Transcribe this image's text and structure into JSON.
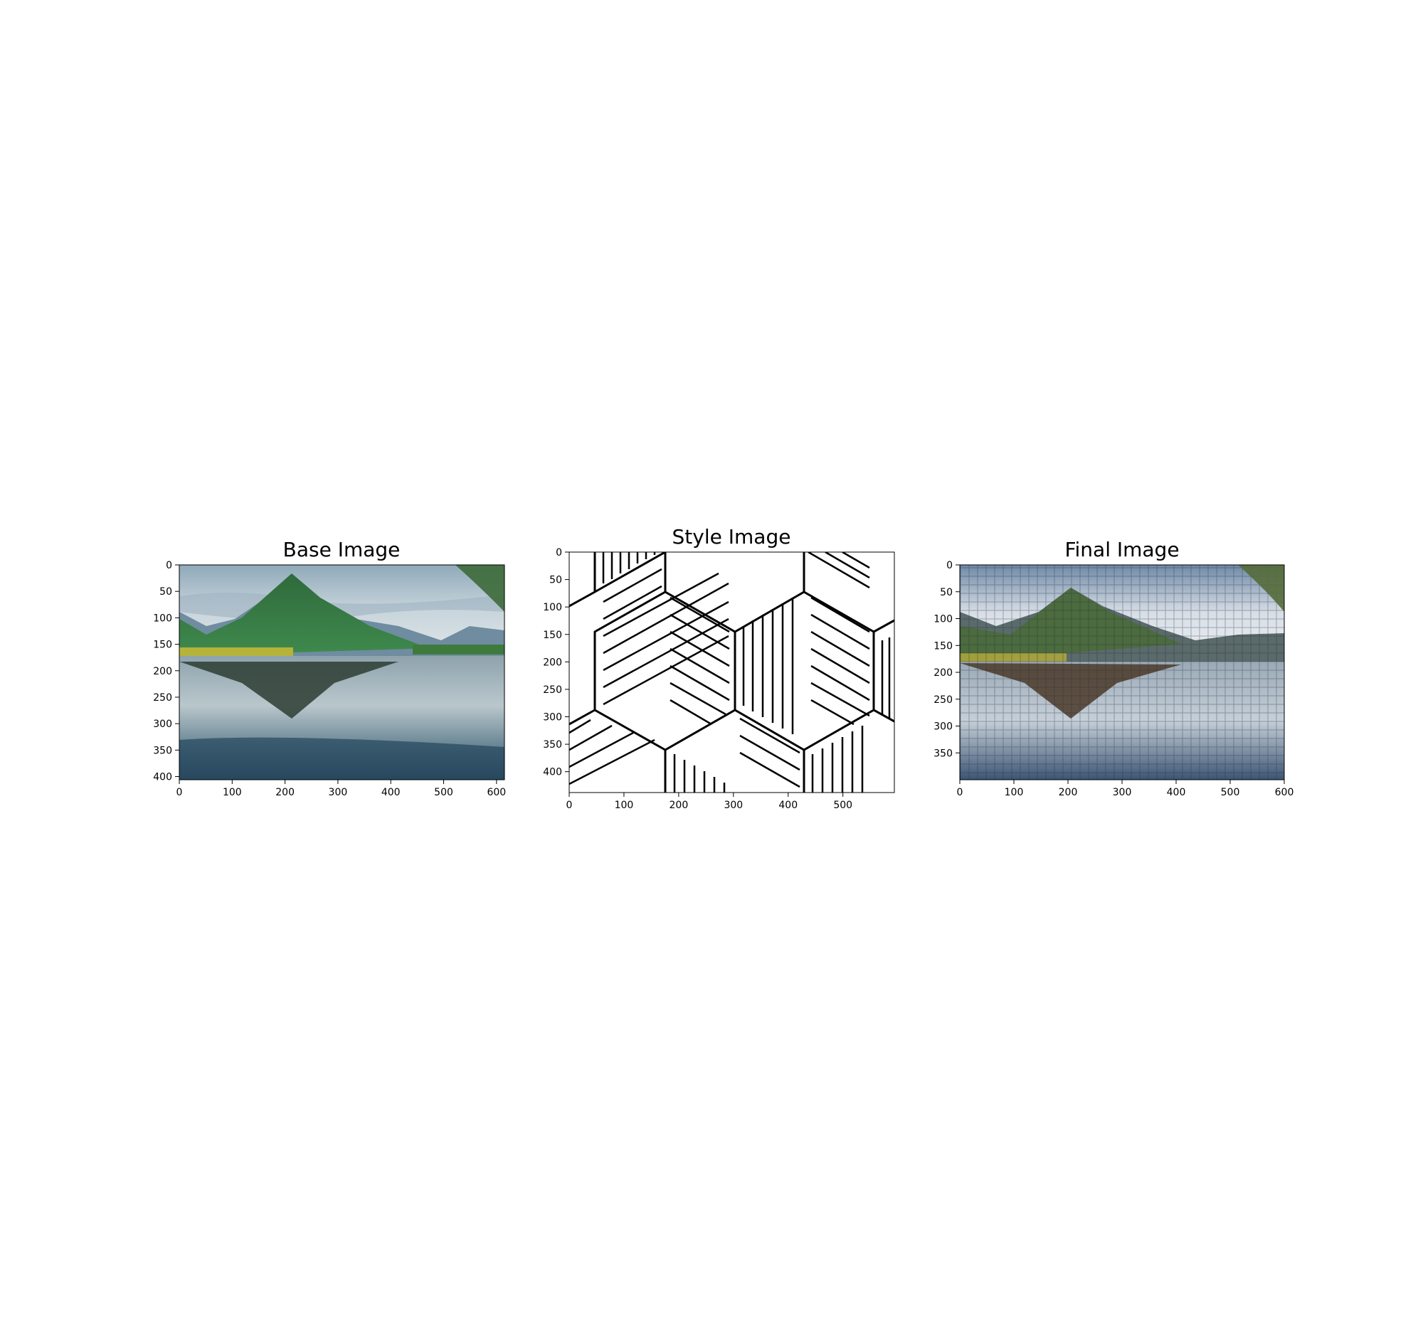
{
  "figure": {
    "panels": [
      {
        "title": "Base Image",
        "xticks": [
          "0",
          "100",
          "200",
          "300",
          "400",
          "500",
          "600"
        ],
        "yticks": [
          "0",
          "50",
          "100",
          "150",
          "200",
          "250",
          "300",
          "350",
          "400"
        ]
      },
      {
        "title": "Style Image",
        "xticks": [
          "0",
          "100",
          "200",
          "300",
          "400",
          "500"
        ],
        "yticks": [
          "0",
          "50",
          "100",
          "150",
          "200",
          "250",
          "300",
          "350",
          "400"
        ]
      },
      {
        "title": "Final Image",
        "xticks": [
          "0",
          "100",
          "200",
          "300",
          "400",
          "500",
          "600"
        ],
        "yticks": [
          "0",
          "50",
          "100",
          "150",
          "200",
          "250",
          "300",
          "350"
        ]
      }
    ]
  }
}
